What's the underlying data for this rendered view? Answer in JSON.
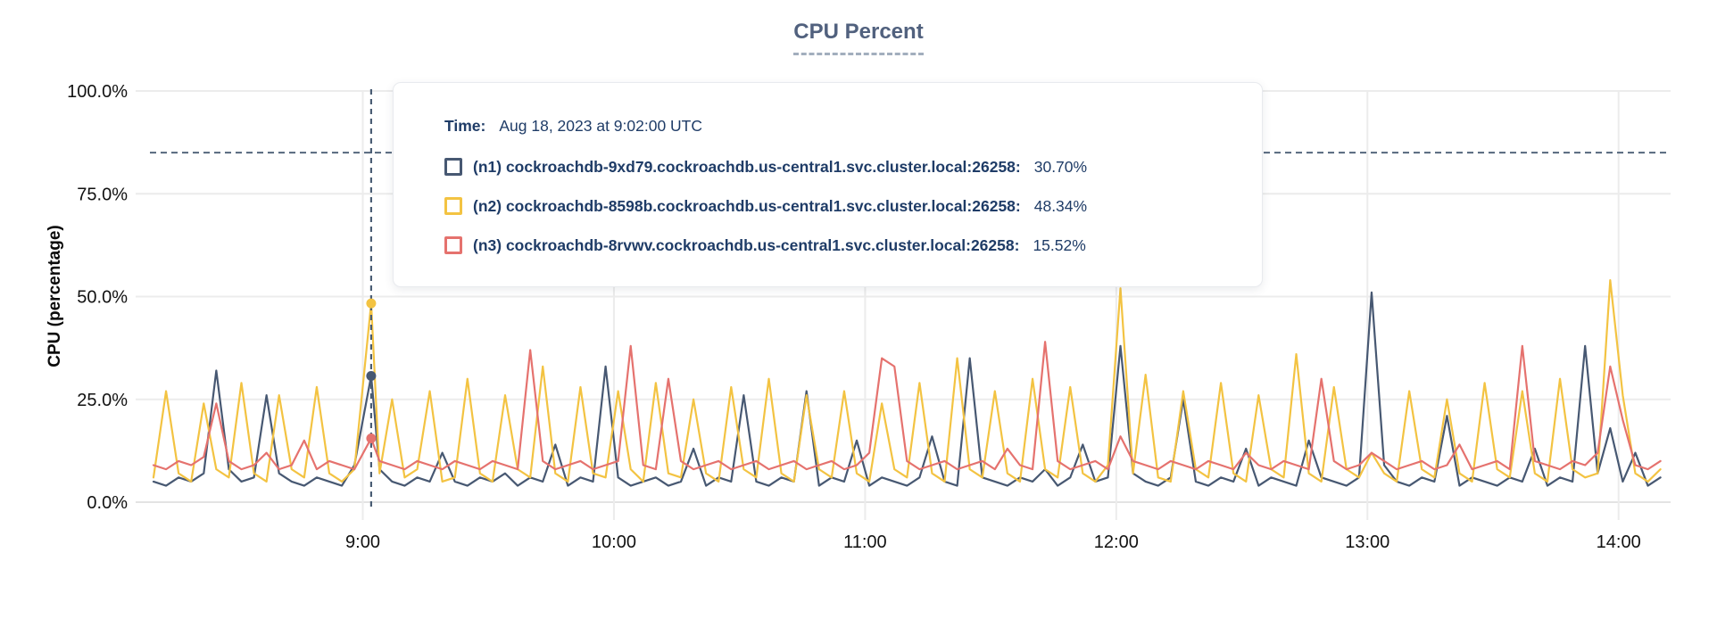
{
  "chart": {
    "title": "CPU Percent",
    "ylabel": "CPU (percentage)"
  },
  "tooltip": {
    "time_label": "Time:",
    "time_value": "Aug 18, 2023 at 9:02:00 UTC",
    "rows": [
      {
        "label": "(n1) cockroachdb-9xd79.cockroachdb.us-central1.svc.cluster.local:26258:",
        "value": "30.70%",
        "color": "#475872"
      },
      {
        "label": "(n2) cockroachdb-8598b.cockroachdb.us-central1.svc.cluster.local:26258:",
        "value": "48.34%",
        "color": "#f3c342"
      },
      {
        "label": "(n3) cockroachdb-8rvwv.cockroachdb.us-central1.svc.cluster.local:26258:",
        "value": "15.52%",
        "color": "#e5726e"
      }
    ]
  },
  "chart_data": {
    "type": "line",
    "title": "CPU Percent",
    "xlabel": "",
    "ylabel": "CPU (percentage)",
    "ylim": [
      0,
      100
    ],
    "grid": true,
    "legend_position": "tooltip-overlay",
    "x_unit": "minutes after 08:00 UTC, Aug 18 2023",
    "x_range_label": [
      "8:10",
      "14:10"
    ],
    "y_ticks": [
      {
        "v": 0,
        "label": "0.0%"
      },
      {
        "v": 25,
        "label": "25.0%"
      },
      {
        "v": 50,
        "label": "50.0%"
      },
      {
        "v": 75,
        "label": "75.0%"
      },
      {
        "v": 100,
        "label": "100.0%"
      }
    ],
    "x_ticks": [
      {
        "t": 540,
        "label": "9:00"
      },
      {
        "t": 600,
        "label": "10:00"
      },
      {
        "t": 660,
        "label": "11:00"
      },
      {
        "t": 720,
        "label": "12:00"
      },
      {
        "t": 780,
        "label": "13:00"
      },
      {
        "t": 840,
        "label": "14:00"
      }
    ],
    "threshold_line": {
      "value": 85,
      "style": "dashed",
      "color": "#55677d"
    },
    "cursor": {
      "t": 542,
      "time_label": "9:02:00 UTC",
      "points": [
        {
          "series": "n1",
          "value": 30.7
        },
        {
          "series": "n2",
          "value": 48.34
        },
        {
          "series": "n3",
          "value": 15.52
        }
      ]
    },
    "x": [
      490,
      493,
      496,
      499,
      502,
      505,
      508,
      511,
      514,
      517,
      520,
      523,
      526,
      529,
      532,
      535,
      538,
      542,
      544,
      547,
      550,
      553,
      556,
      559,
      562,
      565,
      568,
      571,
      574,
      577,
      580,
      583,
      586,
      589,
      592,
      595,
      598,
      601,
      604,
      607,
      610,
      613,
      616,
      619,
      622,
      625,
      628,
      631,
      634,
      637,
      640,
      643,
      646,
      649,
      652,
      655,
      658,
      661,
      664,
      667,
      670,
      673,
      676,
      679,
      682,
      685,
      688,
      691,
      694,
      697,
      700,
      703,
      706,
      709,
      712,
      715,
      718,
      721,
      724,
      727,
      730,
      733,
      736,
      739,
      742,
      745,
      748,
      751,
      754,
      757,
      760,
      763,
      766,
      769,
      772,
      775,
      778,
      781,
      784,
      787,
      790,
      793,
      796,
      799,
      802,
      805,
      808,
      811,
      814,
      817,
      820,
      823,
      826,
      829,
      832,
      835,
      838,
      841,
      844,
      847,
      850
    ],
    "series": [
      {
        "name": "(n1) cockroachdb-9xd79.cockroachdb.us-central1.svc.cluster.local:26258",
        "color": "#475872",
        "values": [
          5,
          4,
          6,
          5,
          7,
          32,
          8,
          5,
          6,
          26,
          7,
          5,
          4,
          6,
          5,
          4,
          9,
          30.7,
          8,
          5,
          4,
          6,
          5,
          12,
          5,
          4,
          6,
          5,
          7,
          4,
          6,
          5,
          14,
          4,
          6,
          5,
          33,
          6,
          4,
          5,
          6,
          4,
          5,
          13,
          4,
          6,
          5,
          26,
          5,
          4,
          6,
          5,
          27,
          4,
          6,
          5,
          15,
          4,
          6,
          5,
          4,
          6,
          16,
          5,
          4,
          35,
          6,
          5,
          4,
          6,
          5,
          8,
          4,
          6,
          14,
          5,
          6,
          38,
          7,
          5,
          4,
          6,
          25,
          5,
          4,
          6,
          5,
          13,
          4,
          6,
          5,
          4,
          15,
          6,
          5,
          4,
          6,
          51,
          9,
          5,
          4,
          6,
          5,
          21,
          4,
          6,
          5,
          4,
          6,
          5,
          13,
          4,
          6,
          5,
          38,
          7,
          18,
          5,
          12,
          4,
          6
        ]
      },
      {
        "name": "(n2) cockroachdb-8598b.cockroachdb.us-central1.svc.cluster.local:26258",
        "color": "#f3c342",
        "values": [
          6,
          27,
          7,
          5,
          24,
          8,
          6,
          29,
          7,
          5,
          26,
          8,
          6,
          28,
          7,
          5,
          8,
          48.34,
          7,
          25,
          6,
          8,
          27,
          5,
          6,
          30,
          7,
          5,
          26,
          8,
          6,
          33,
          7,
          5,
          28,
          7,
          6,
          27,
          8,
          5,
          29,
          7,
          6,
          25,
          7,
          5,
          28,
          8,
          6,
          30,
          7,
          5,
          26,
          8,
          6,
          27,
          7,
          5,
          24,
          8,
          6,
          29,
          7,
          5,
          35,
          8,
          6,
          27,
          7,
          5,
          30,
          8,
          6,
          28,
          7,
          5,
          9,
          52,
          7,
          31,
          6,
          5,
          27,
          8,
          6,
          29,
          7,
          5,
          26,
          8,
          6,
          36,
          7,
          5,
          28,
          8,
          6,
          12,
          7,
          5,
          27,
          8,
          6,
          25,
          7,
          5,
          29,
          8,
          6,
          27,
          7,
          5,
          30,
          8,
          6,
          7,
          54,
          26,
          7,
          5,
          8
        ]
      },
      {
        "name": "(n3) cockroachdb-8rvwv.cockroachdb.us-central1.svc.cluster.local:26258",
        "color": "#e5726e",
        "values": [
          9,
          8,
          10,
          9,
          11,
          24,
          10,
          8,
          9,
          12,
          8,
          9,
          15,
          8,
          10,
          9,
          8,
          15.52,
          10,
          9,
          8,
          10,
          9,
          8,
          10,
          9,
          8,
          10,
          9,
          8,
          37,
          10,
          8,
          9,
          10,
          8,
          9,
          10,
          38,
          9,
          8,
          30,
          10,
          8,
          9,
          10,
          8,
          9,
          10,
          8,
          9,
          10,
          8,
          9,
          10,
          8,
          9,
          12,
          35,
          33,
          10,
          8,
          9,
          10,
          8,
          9,
          10,
          8,
          13,
          9,
          8,
          39,
          10,
          8,
          9,
          10,
          8,
          16,
          10,
          9,
          8,
          10,
          9,
          8,
          10,
          9,
          8,
          12,
          9,
          8,
          10,
          9,
          8,
          30,
          10,
          8,
          9,
          12,
          10,
          8,
          9,
          10,
          8,
          9,
          14,
          8,
          9,
          10,
          8,
          38,
          10,
          9,
          8,
          10,
          9,
          12,
          33,
          20,
          9,
          8,
          10
        ]
      }
    ]
  },
  "colors": {
    "grid": "#ececec",
    "axis_text": "#111111",
    "title": "#51617e",
    "tooltip_text": "#1f3c67",
    "cursor": "#4a5d74"
  }
}
